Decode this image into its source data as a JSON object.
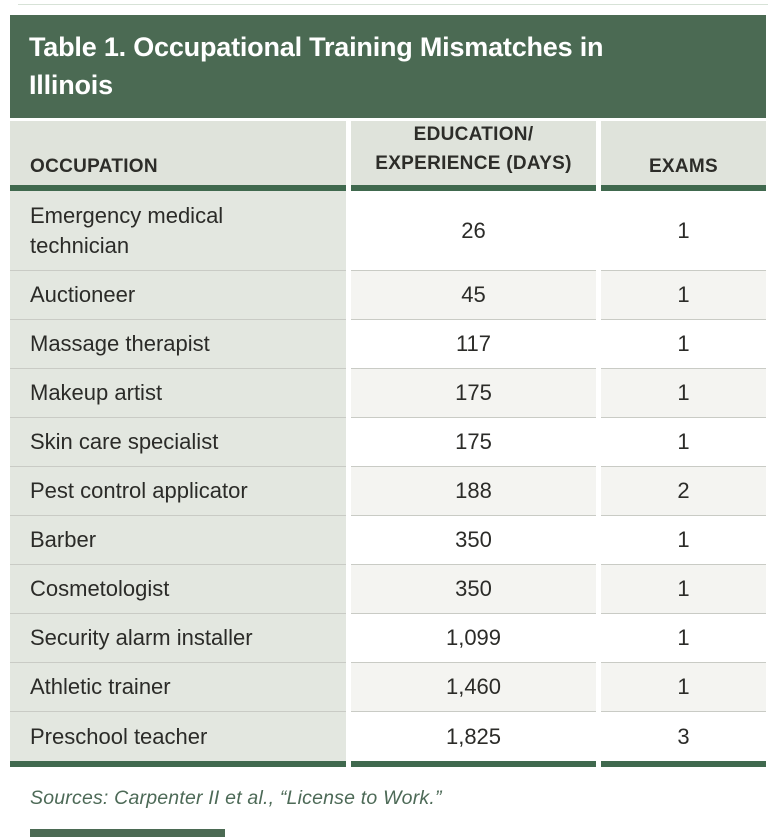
{
  "table": {
    "title": "Table 1. Occupational Training Mismatches in Illinois",
    "title_lines": [
      "Table 1. Occupational Training Mismatches in",
      "Illinois"
    ],
    "columns": {
      "occupation": "OCCUPATION",
      "days_lines": [
        "EDUCATION/",
        "EXPERIENCE (DAYS)"
      ],
      "exams": "EXAMS"
    },
    "rows": [
      {
        "occupation": "Emergency medical technician",
        "days": "26",
        "exams": "1"
      },
      {
        "occupation": "Auctioneer",
        "days": "45",
        "exams": "1"
      },
      {
        "occupation": "Massage therapist",
        "days": "117",
        "exams": "1"
      },
      {
        "occupation": "Makeup artist",
        "days": "175",
        "exams": "1"
      },
      {
        "occupation": "Skin care specialist",
        "days": "175",
        "exams": "1"
      },
      {
        "occupation": "Pest control applicator",
        "days": "188",
        "exams": "2"
      },
      {
        "occupation": "Barber",
        "days": "350",
        "exams": "1"
      },
      {
        "occupation": "Cosmetologist",
        "days": "350",
        "exams": "1"
      },
      {
        "occupation": "Security alarm installer",
        "days": "1,099",
        "exams": "1"
      },
      {
        "occupation": "Athletic trainer",
        "days": "1,460",
        "exams": "1"
      },
      {
        "occupation": "Preschool teacher",
        "days": "1,825",
        "exams": "3"
      }
    ],
    "source_note": "Sources: Carpenter II et al., “License to Work.”",
    "colors": {
      "banner_green": "#4b6a53",
      "rule_green": "#40694e",
      "header_row_bg": "#dfe3db",
      "occupation_col_bg": "#e3e7e0",
      "alt_row_bg": "#f4f4f1",
      "divider": "#c9cbc5",
      "text": "#2b2b28",
      "source_text": "#4d6a57"
    }
  },
  "chart_data": {
    "type": "table",
    "title": "Table 1. Occupational Training Mismatches in Illinois",
    "columns": [
      "OCCUPATION",
      "EDUCATION/EXPERIENCE (DAYS)",
      "EXAMS"
    ],
    "rows": [
      [
        "Emergency medical technician",
        26,
        1
      ],
      [
        "Auctioneer",
        45,
        1
      ],
      [
        "Massage therapist",
        117,
        1
      ],
      [
        "Makeup artist",
        175,
        1
      ],
      [
        "Skin care specialist",
        175,
        1
      ],
      [
        "Pest control applicator",
        188,
        2
      ],
      [
        "Barber",
        350,
        1
      ],
      [
        "Cosmetologist",
        350,
        1
      ],
      [
        "Security alarm installer",
        1099,
        1
      ],
      [
        "Athletic trainer",
        1460,
        1
      ],
      [
        "Preschool teacher",
        1825,
        3
      ]
    ],
    "source": "Sources: Carpenter II et al., “License to Work.”"
  }
}
